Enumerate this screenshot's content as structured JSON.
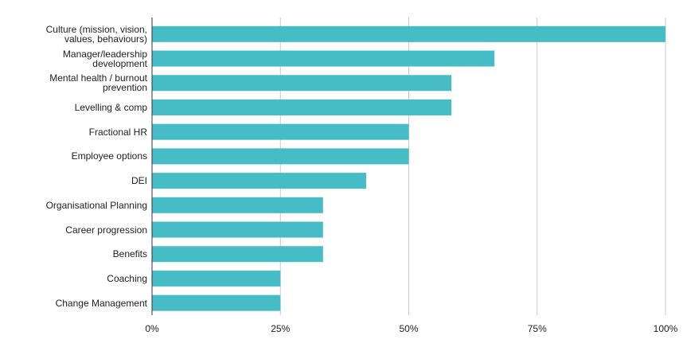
{
  "chart_data": {
    "type": "bar",
    "orientation": "horizontal",
    "categories": [
      "Culture (mission, vision, values, behaviours)",
      "Manager/leadership development",
      "Mental health / burnout prevention",
      "Levelling & comp",
      "Fractional HR",
      "Employee options",
      "DEI",
      "Organisational Planning",
      "Career progression",
      "Benefits",
      "Coaching",
      "Change Management"
    ],
    "values": [
      100,
      66.7,
      58.3,
      58.3,
      50,
      50,
      41.7,
      33.3,
      33.3,
      33.3,
      25,
      25
    ],
    "color": "#46bdc6",
    "xlim": [
      0,
      100
    ],
    "xticks": [
      {
        "value": 0,
        "label": "0%"
      },
      {
        "value": 25,
        "label": "25%"
      },
      {
        "value": 50,
        "label": "50%"
      },
      {
        "value": 75,
        "label": "75%"
      },
      {
        "value": 100,
        "label": "100%"
      }
    ],
    "grid": true
  }
}
